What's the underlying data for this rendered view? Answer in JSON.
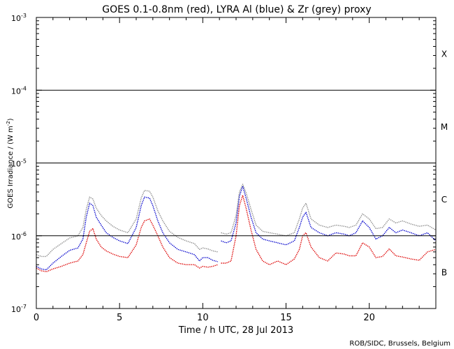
{
  "chart_data": {
    "type": "line",
    "title": "GOES 0.1-0.8nm (red), LYRA Al (blue) & Zr (grey) proxy",
    "xlabel": "Time / h UTC, 28 Jul 2013",
    "ylabel_main": "GOES Irradiance / (W m",
    "ylabel_sup": "-2",
    "ylabel_end": ")",
    "credit": "ROB/SIDC, Brussels, Belgium",
    "x_range": [
      0,
      24
    ],
    "x_ticks": [
      0,
      5,
      10,
      15,
      20
    ],
    "y_scale": "log",
    "y_range": [
      1e-07,
      0.001
    ],
    "y_ticks": [
      {
        "value": 0.001,
        "base": "10",
        "exp": "-3"
      },
      {
        "value": 0.0001,
        "base": "10",
        "exp": "-4"
      },
      {
        "value": 1e-05,
        "base": "10",
        "exp": "-5"
      },
      {
        "value": 1e-06,
        "base": "10",
        "exp": "-6"
      },
      {
        "value": 1e-07,
        "base": "10",
        "exp": "-7"
      }
    ],
    "class_lines": [
      1e-06,
      1e-05,
      0.0001
    ],
    "class_labels": [
      {
        "label": "X",
        "value": 0.00032
      },
      {
        "label": "M",
        "value": 3.2e-05
      },
      {
        "label": "C",
        "value": 3.2e-06
      },
      {
        "label": "B",
        "value": 3.2e-07
      }
    ],
    "gaps": [
      [
        10.95,
        11.0
      ]
    ],
    "series": [
      {
        "name": "GOES 0.1-0.8nm",
        "color": "#dd0000",
        "x": [
          0,
          0.3,
          0.6,
          1.0,
          1.5,
          2.0,
          2.5,
          2.8,
          3.0,
          3.2,
          3.4,
          3.6,
          3.9,
          4.2,
          4.6,
          5.0,
          5.5,
          6.0,
          6.3,
          6.5,
          6.8,
          7.0,
          7.3,
          7.6,
          8.0,
          8.5,
          9.0,
          9.5,
          9.8,
          10.0,
          10.3,
          10.6,
          10.9,
          11.1,
          11.4,
          11.7,
          12.0,
          12.2,
          12.4,
          12.6,
          12.9,
          13.2,
          13.6,
          14.0,
          14.5,
          15.0,
          15.5,
          15.8,
          16.0,
          16.2,
          16.5,
          17.0,
          17.5,
          18.0,
          18.5,
          18.8,
          19.2,
          19.6,
          20.0,
          20.4,
          20.8,
          21.2,
          21.6,
          22.0,
          22.5,
          23.0,
          23.5,
          24.0
        ],
        "y": [
          3.6e-07,
          3.3e-07,
          3.2e-07,
          3.5e-07,
          3.8e-07,
          4.2e-07,
          4.5e-07,
          5.5e-07,
          8e-07,
          1.15e-06,
          1.25e-06,
          9e-07,
          7e-07,
          6.2e-07,
          5.6e-07,
          5.2e-07,
          5e-07,
          7.5e-07,
          1.3e-06,
          1.6e-06,
          1.7e-06,
          1.4e-06,
          1e-06,
          7e-07,
          5e-07,
          4.2e-07,
          4e-07,
          4e-07,
          3.6e-07,
          3.8e-07,
          3.7e-07,
          3.8e-07,
          4e-07,
          4.2e-07,
          4.2e-07,
          4.5e-07,
          1e-06,
          2.6e-06,
          3.6e-06,
          2.4e-06,
          1.2e-06,
          6.5e-07,
          4.5e-07,
          4e-07,
          4.5e-07,
          4e-07,
          4.8e-07,
          6.5e-07,
          1e-06,
          1.1e-06,
          7e-07,
          5e-07,
          4.5e-07,
          5.8e-07,
          5.6e-07,
          5.3e-07,
          5.3e-07,
          8e-07,
          7e-07,
          5e-07,
          5.2e-07,
          6.6e-07,
          5.3e-07,
          5.1e-07,
          4.8e-07,
          4.6e-07,
          6e-07,
          6.5e-07
        ]
      },
      {
        "name": "LYRA Al proxy",
        "color": "#0000cc",
        "x": [
          0,
          0.3,
          0.6,
          1.0,
          1.5,
          2.0,
          2.5,
          2.8,
          3.0,
          3.2,
          3.4,
          3.6,
          3.9,
          4.2,
          4.6,
          5.0,
          5.5,
          6.0,
          6.3,
          6.5,
          6.8,
          7.0,
          7.3,
          7.6,
          8.0,
          8.5,
          9.0,
          9.5,
          9.8,
          10.0,
          10.3,
          10.6,
          10.9,
          11.1,
          11.4,
          11.7,
          12.0,
          12.2,
          12.4,
          12.6,
          12.9,
          13.2,
          13.6,
          14.0,
          14.5,
          15.0,
          15.5,
          15.8,
          16.0,
          16.2,
          16.5,
          17.0,
          17.5,
          18.0,
          18.5,
          18.8,
          19.2,
          19.6,
          20.0,
          20.4,
          20.8,
          21.2,
          21.6,
          22.0,
          22.5,
          23.0,
          23.5,
          24.0
        ],
        "y": [
          3.8e-07,
          3.5e-07,
          3.4e-07,
          4.2e-07,
          5.2e-07,
          6.3e-07,
          6.8e-07,
          9e-07,
          1.8e-06,
          2.8e-06,
          2.6e-06,
          1.8e-06,
          1.4e-06,
          1.1e-06,
          9.5e-07,
          8.5e-07,
          7.8e-07,
          1.3e-06,
          2.6e-06,
          3.4e-06,
          3.3e-06,
          2.6e-06,
          1.6e-06,
          1.1e-06,
          8e-07,
          6.5e-07,
          6e-07,
          5.5e-07,
          4.5e-07,
          5e-07,
          5e-07,
          4.6e-07,
          4.4e-07,
          8.5e-07,
          8e-07,
          8.5e-07,
          1.5e-06,
          3.5e-06,
          4.8e-06,
          3.3e-06,
          1.8e-06,
          1.1e-06,
          9e-07,
          8.5e-07,
          8e-07,
          7.5e-07,
          8.5e-07,
          1.3e-06,
          1.8e-06,
          2.1e-06,
          1.3e-06,
          1.1e-06,
          1e-06,
          1.1e-06,
          1.05e-06,
          1e-06,
          1.1e-06,
          1.6e-06,
          1.3e-06,
          9e-07,
          1e-06,
          1.3e-06,
          1.1e-06,
          1.2e-06,
          1.1e-06,
          1e-06,
          1.1e-06,
          8.5e-07
        ]
      },
      {
        "name": "LYRA Zr proxy",
        "color": "#8c8c8c",
        "x": [
          0,
          0.3,
          0.6,
          1.0,
          1.5,
          2.0,
          2.5,
          2.8,
          3.0,
          3.2,
          3.4,
          3.6,
          3.9,
          4.2,
          4.6,
          5.0,
          5.5,
          6.0,
          6.3,
          6.5,
          6.8,
          7.0,
          7.3,
          7.6,
          8.0,
          8.5,
          9.0,
          9.5,
          9.8,
          10.0,
          10.3,
          10.6,
          10.9,
          11.1,
          11.4,
          11.7,
          12.0,
          12.2,
          12.4,
          12.6,
          12.9,
          13.2,
          13.6,
          14.0,
          14.5,
          15.0,
          15.5,
          15.8,
          16.0,
          16.2,
          16.5,
          17.0,
          17.5,
          18.0,
          18.5,
          18.8,
          19.2,
          19.6,
          20.0,
          20.4,
          20.8,
          21.2,
          21.6,
          22.0,
          22.5,
          23.0,
          23.5,
          24.0
        ],
        "y": [
          5.5e-07,
          5.2e-07,
          5.2e-07,
          6.5e-07,
          7.8e-07,
          9.3e-07,
          1e-06,
          1.3e-06,
          2.3e-06,
          3.4e-06,
          3.2e-06,
          2.4e-06,
          1.9e-06,
          1.6e-06,
          1.35e-06,
          1.2e-06,
          1.1e-06,
          1.7e-06,
          3.3e-06,
          4.2e-06,
          4.1e-06,
          3.4e-06,
          2.2e-06,
          1.6e-06,
          1.15e-06,
          9.5e-07,
          8.5e-07,
          7.8e-07,
          6.5e-07,
          6.8e-07,
          6.6e-07,
          6.2e-07,
          6e-07,
          1.1e-06,
          1.05e-06,
          1.1e-06,
          1.9e-06,
          4e-06,
          5.1e-06,
          3.9e-06,
          2.3e-06,
          1.4e-06,
          1.15e-06,
          1.1e-06,
          1.05e-06,
          1e-06,
          1.1e-06,
          1.7e-06,
          2.4e-06,
          2.8e-06,
          1.7e-06,
          1.4e-06,
          1.3e-06,
          1.4e-06,
          1.35e-06,
          1.3e-06,
          1.4e-06,
          2e-06,
          1.7e-06,
          1.25e-06,
          1.3e-06,
          1.7e-06,
          1.5e-06,
          1.6e-06,
          1.45e-06,
          1.35e-06,
          1.4e-06,
          1.2e-06
        ]
      }
    ]
  }
}
